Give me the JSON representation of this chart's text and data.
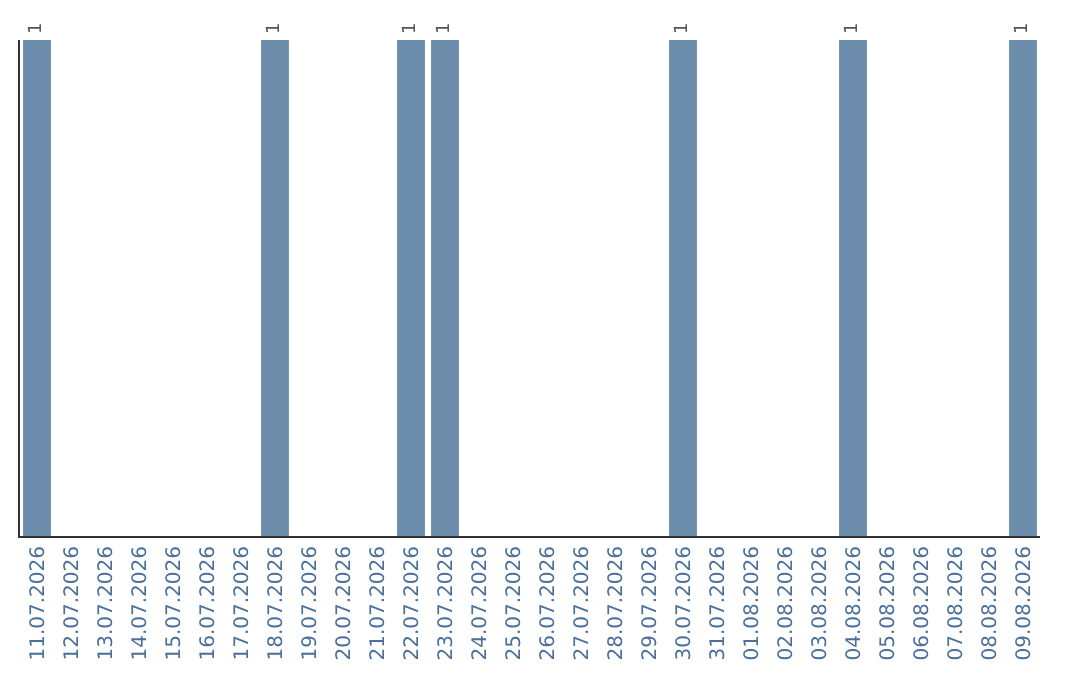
{
  "chart_data": {
    "type": "bar",
    "categories": [
      "11.07.2026",
      "12.07.2026",
      "13.07.2026",
      "14.07.2026",
      "15.07.2026",
      "16.07.2026",
      "17.07.2026",
      "18.07.2026",
      "19.07.2026",
      "20.07.2026",
      "21.07.2026",
      "22.07.2026",
      "23.07.2026",
      "24.07.2026",
      "25.07.2026",
      "26.07.2026",
      "27.07.2026",
      "28.07.2026",
      "29.07.2026",
      "30.07.2026",
      "31.07.2026",
      "01.08.2026",
      "02.08.2026",
      "03.08.2026",
      "04.08.2026",
      "05.08.2026",
      "06.08.2026",
      "07.08.2026",
      "08.08.2026",
      "09.08.2026"
    ],
    "values": [
      1,
      0,
      0,
      0,
      0,
      0,
      0,
      1,
      0,
      0,
      0,
      1,
      1,
      0,
      0,
      0,
      0,
      0,
      0,
      1,
      0,
      0,
      0,
      0,
      1,
      0,
      0,
      0,
      0,
      1
    ],
    "value_labels": [
      "1",
      null,
      null,
      null,
      null,
      null,
      null,
      "1",
      null,
      null,
      null,
      "1",
      "1",
      null,
      null,
      null,
      null,
      null,
      null,
      "1",
      null,
      null,
      null,
      null,
      "1",
      null,
      null,
      null,
      null,
      "1"
    ],
    "color": "#6b8cab",
    "tick_labels": "x",
    "legend": false
  }
}
